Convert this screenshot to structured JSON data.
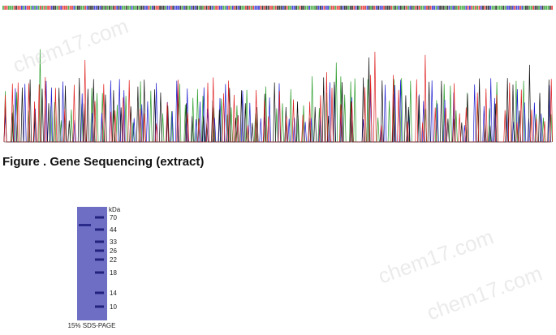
{
  "figure": {
    "caption": "Figure . Gene Sequencing (extract)"
  },
  "gel": {
    "unit": "kDa",
    "markers": [
      70,
      44,
      33,
      26,
      22,
      18,
      14,
      10
    ],
    "caption": "15% SDS-PAGE"
  },
  "watermark": "chem17.com"
}
